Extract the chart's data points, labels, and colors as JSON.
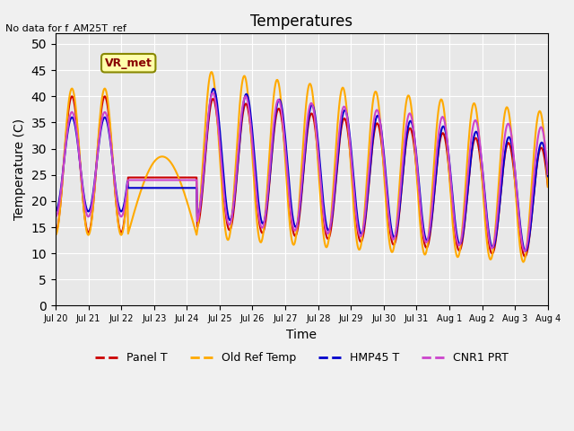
{
  "title": "Temperatures",
  "xlabel": "Time",
  "ylabel": "Temperature (C)",
  "ylim": [
    0,
    52
  ],
  "yticks": [
    0,
    5,
    10,
    15,
    20,
    25,
    30,
    35,
    40,
    45,
    50
  ],
  "no_data_text": "No data for f_AM25T_ref",
  "annotation_label": "VR_met",
  "bg_color": "#e8e8e8",
  "colors": {
    "panel_t": "#cc0000",
    "old_ref": "#ffaa00",
    "hmp45": "#0000cc",
    "cnr1": "#cc44cc"
  },
  "legend_labels": [
    "Panel T",
    "Old Ref Temp",
    "HMP45 T",
    "CNR1 PRT"
  ],
  "x_tick_labels": [
    "Jul 20",
    "Jul 21",
    "Jul 22",
    "Jul 23",
    "Jul 24",
    "Jul 25",
    "Jul 26",
    "Jul 27",
    "Jul 28",
    "Jul 29",
    "Jul 30",
    "Jul 31",
    "Aug 1",
    "Aug 2",
    "Aug 3",
    "Aug 4"
  ]
}
